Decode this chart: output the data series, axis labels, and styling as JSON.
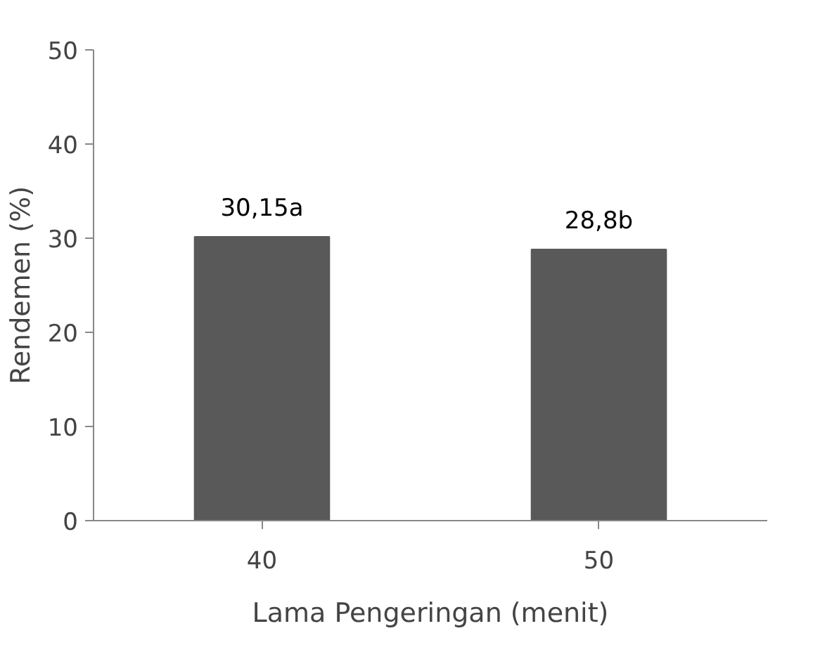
{
  "chart_data": {
    "type": "bar",
    "xlabel": "Lama Pengeringan (menit)",
    "ylabel": "Rendemen (%)",
    "categories": [
      "40",
      "50"
    ],
    "values": [
      30.15,
      28.8
    ],
    "value_labels": [
      "30,15a",
      "28,8b"
    ],
    "color": "#595959",
    "ylim": [
      0,
      50
    ],
    "yticks": [
      0,
      10,
      20,
      30,
      40,
      50
    ],
    "grid": false
  }
}
